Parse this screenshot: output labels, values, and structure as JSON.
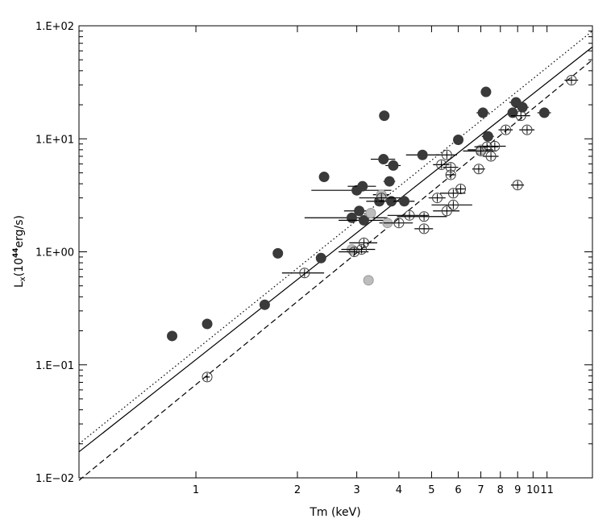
{
  "chart_data": {
    "type": "scatter",
    "xscale": "log",
    "yscale": "log",
    "xlim": [
      0.45,
      15
    ],
    "ylim": [
      0.01,
      100
    ],
    "xlabel": "Tm (keV)",
    "ylabel": "L",
    "ylabel_sub": "x",
    "ylabel_paren_open": "(10",
    "ylabel_exp": "44",
    "ylabel_unit": "erg/s)",
    "x_ticks": [
      {
        "value": 1,
        "label": "1"
      },
      {
        "value": 2,
        "label": "2"
      },
      {
        "value": 3,
        "label": "3"
      },
      {
        "value": 4,
        "label": "4"
      },
      {
        "value": 5,
        "label": "5"
      },
      {
        "value": 6,
        "label": "6"
      },
      {
        "value": 7,
        "label": "7"
      },
      {
        "value": 8,
        "label": "8"
      },
      {
        "value": 9,
        "label": "9"
      },
      {
        "value": 10,
        "label": "10"
      },
      {
        "value": 11,
        "label": "11"
      }
    ],
    "y_ticks": [
      {
        "value": 0.01,
        "label": "1.E−02"
      },
      {
        "value": 0.1,
        "label": "1.E−01"
      },
      {
        "value": 1,
        "label": "1.E+00"
      },
      {
        "value": 10,
        "label": "1.E+01"
      },
      {
        "value": 100,
        "label": "1.E+02"
      }
    ],
    "lines": [
      {
        "style": "dotted",
        "x": [
          0.45,
          15
        ],
        "y": [
          0.02,
          90
        ]
      },
      {
        "style": "solid",
        "x": [
          0.45,
          15
        ],
        "y": [
          0.017,
          65
        ]
      },
      {
        "style": "dashed",
        "x": [
          0.45,
          15
        ],
        "y": [
          0.0095,
          50
        ]
      }
    ],
    "series": [
      {
        "marker": "filled-dark",
        "color": "#3a3a3a",
        "points": [
          {
            "x": 0.85,
            "y": 0.18,
            "xerr": 0.02
          },
          {
            "x": 1.08,
            "y": 0.23,
            "xerr": 0.02
          },
          {
            "x": 1.6,
            "y": 0.34,
            "xerr": 0.03
          },
          {
            "x": 1.75,
            "y": 0.97,
            "xerr": 0.03
          },
          {
            "x": 2.35,
            "y": 0.88,
            "xerr": 0.05
          },
          {
            "x": 2.4,
            "y": 4.6,
            "xerr": 0.05
          },
          {
            "x": 2.9,
            "y": 2.0,
            "xerr": 0.8
          },
          {
            "x": 3.0,
            "y": 3.5,
            "xerr": 0.8
          },
          {
            "x": 3.05,
            "y": 2.3,
            "xerr": 0.3
          },
          {
            "x": 3.12,
            "y": 3.8,
            "xerr": 0.3
          },
          {
            "x": 3.15,
            "y": 1.9,
            "xerr": 0.5
          },
          {
            "x": 3.5,
            "y": 2.8,
            "xerr": 0.3
          },
          {
            "x": 3.6,
            "y": 6.6,
            "xerr": 0.3
          },
          {
            "x": 3.62,
            "y": 16.0,
            "xerr": 0.05
          },
          {
            "x": 3.75,
            "y": 4.2,
            "xerr": 0.15
          },
          {
            "x": 3.8,
            "y": 2.8,
            "xerr": 0.4
          },
          {
            "x": 3.85,
            "y": 5.8,
            "xerr": 0.2
          },
          {
            "x": 4.15,
            "y": 2.8,
            "xerr": 0.3
          },
          {
            "x": 4.7,
            "y": 7.2,
            "xerr": 0.5
          },
          {
            "x": 6.0,
            "y": 9.8,
            "xerr": 0.2
          },
          {
            "x": 7.1,
            "y": 17.0,
            "xerr": 0.3
          },
          {
            "x": 7.25,
            "y": 26.0,
            "xerr": 0.2
          },
          {
            "x": 7.35,
            "y": 10.5,
            "xerr": 0.3
          },
          {
            "x": 8.7,
            "y": 17.0,
            "xerr": 0.3
          },
          {
            "x": 8.9,
            "y": 21.0,
            "xerr": 0.4
          },
          {
            "x": 9.3,
            "y": 19.0,
            "xerr": 0.4
          },
          {
            "x": 10.8,
            "y": 17.0,
            "xerr": 0.5
          }
        ]
      },
      {
        "marker": "filled-grey",
        "color": "#bdbdbd",
        "points": [
          {
            "x": 2.9,
            "y": 1.05,
            "xerr": 0.2
          },
          {
            "x": 3.25,
            "y": 0.56,
            "xerr": 0.05
          },
          {
            "x": 3.3,
            "y": 2.2,
            "xerr": 0.1
          },
          {
            "x": 3.7,
            "y": 1.8,
            "xerr": 0.2
          },
          {
            "x": 3.55,
            "y": 3.2,
            "xerr": 0.2
          },
          {
            "x": 7.0,
            "y": 8.0,
            "xerr": 0.6
          }
        ]
      },
      {
        "marker": "open",
        "color": "#3a3a3a",
        "points": [
          {
            "x": 1.08,
            "y": 0.078,
            "xerr": 0.02
          },
          {
            "x": 2.1,
            "y": 0.65,
            "xerr": 0.3
          },
          {
            "x": 2.95,
            "y": 1.0,
            "xerr": 0.3
          },
          {
            "x": 3.1,
            "y": 1.05,
            "xerr": 0.3
          },
          {
            "x": 3.15,
            "y": 1.2,
            "xerr": 0.3
          },
          {
            "x": 3.55,
            "y": 3.0,
            "xerr": 0.5
          },
          {
            "x": 4.0,
            "y": 1.8,
            "xerr": 0.4
          },
          {
            "x": 4.3,
            "y": 2.1,
            "xerr": 0.6
          },
          {
            "x": 4.75,
            "y": 1.6,
            "xerr": 0.3
          },
          {
            "x": 4.75,
            "y": 2.05,
            "xerr": 0.8
          },
          {
            "x": 5.2,
            "y": 3.0,
            "xerr": 0.3
          },
          {
            "x": 5.35,
            "y": 5.9,
            "xerr": 0.3
          },
          {
            "x": 5.55,
            "y": 2.3,
            "xerr": 0.5
          },
          {
            "x": 5.55,
            "y": 7.2,
            "xerr": 0.4
          },
          {
            "x": 5.7,
            "y": 4.8,
            "xerr": 0.2
          },
          {
            "x": 5.7,
            "y": 5.6,
            "xerr": 0.3
          },
          {
            "x": 5.8,
            "y": 3.3,
            "xerr": 0.5
          },
          {
            "x": 5.8,
            "y": 2.6,
            "xerr": 0.8
          },
          {
            "x": 6.1,
            "y": 3.6,
            "xerr": 0.2
          },
          {
            "x": 6.9,
            "y": 5.4,
            "xerr": 0.3
          },
          {
            "x": 7.0,
            "y": 7.8,
            "xerr": 0.8
          },
          {
            "x": 7.3,
            "y": 8.5,
            "xerr": 0.6
          },
          {
            "x": 7.5,
            "y": 7.0,
            "xerr": 0.4
          },
          {
            "x": 7.7,
            "y": 8.6,
            "xerr": 0.6
          },
          {
            "x": 8.3,
            "y": 12.0,
            "xerr": 0.4
          },
          {
            "x": 9.2,
            "y": 16.0,
            "xerr": 0.6
          },
          {
            "x": 9.6,
            "y": 12.0,
            "xerr": 0.5
          },
          {
            "x": 9.0,
            "y": 3.9,
            "xerr": 0.4
          },
          {
            "x": 13.0,
            "y": 33.0,
            "xerr": 0.6
          }
        ]
      }
    ]
  }
}
